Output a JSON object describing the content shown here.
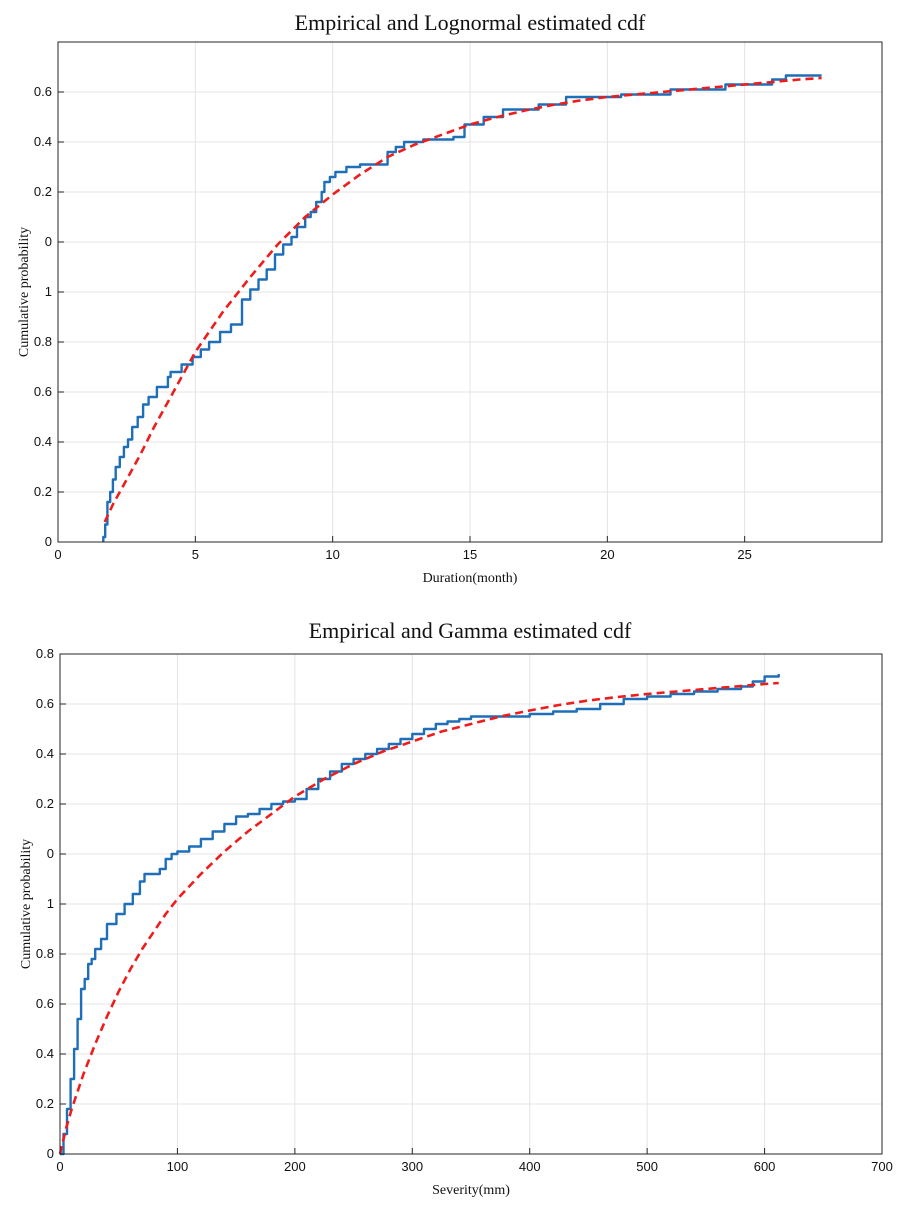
{
  "chart_data": [
    {
      "type": "line",
      "title": "Empirical and Lognormal estimated cdf",
      "xlabel": "Duration(month)",
      "ylabel": "Cumulative probability",
      "xlim": [
        0,
        30
      ],
      "x_ticks": [
        0,
        5,
        10,
        15,
        20,
        25
      ],
      "y_ticks": [
        0,
        1,
        2,
        3,
        4,
        5,
        6,
        7,
        8,
        9,
        10
      ],
      "y_tick_labels": [
        "0",
        "0.2",
        "0.4",
        "0.6",
        "0.8",
        "1",
        "0",
        "0.2",
        "0.4",
        "0.6",
        ""
      ],
      "grid": true,
      "series": [
        {
          "type": "step",
          "color": "#1f6fb8",
          "x": [
            1.65,
            1.72,
            1.8,
            1.9,
            2.0,
            2.1,
            2.25,
            2.4,
            2.55,
            2.7,
            2.9,
            3.1,
            3.3,
            3.6,
            4.0,
            4.1,
            4.5,
            4.9,
            5.2,
            5.5,
            5.9,
            6.3,
            6.7,
            7.0,
            7.3,
            7.6,
            7.9,
            8.2,
            8.5,
            8.7,
            9.0,
            9.2,
            9.4,
            9.6,
            9.7,
            9.9,
            10.1,
            10.5,
            11.0,
            12.0,
            12.3,
            12.6,
            13.3,
            14.4,
            14.8,
            15.5,
            16.2,
            17.5,
            18.5,
            20.5,
            22.3,
            24.3,
            26.0,
            26.5,
            27.8
          ],
          "y": [
            0.1,
            0.35,
            0.8,
            1.0,
            1.25,
            1.5,
            1.7,
            1.9,
            2.05,
            2.3,
            2.5,
            2.75,
            2.9,
            3.1,
            3.3,
            3.4,
            3.55,
            3.7,
            3.85,
            4.0,
            4.2,
            4.35,
            4.85,
            5.05,
            5.25,
            5.45,
            5.75,
            5.95,
            6.1,
            6.3,
            6.5,
            6.6,
            6.8,
            7.0,
            7.2,
            7.3,
            7.4,
            7.5,
            7.55,
            7.8,
            7.9,
            8.0,
            8.05,
            8.1,
            8.35,
            8.5,
            8.65,
            8.75,
            8.9,
            8.95,
            9.05,
            9.15,
            9.25,
            9.33,
            9.33
          ]
        },
        {
          "type": "fit",
          "color": "#ef1c1c",
          "x": [
            1.7,
            2.0,
            2.5,
            3.0,
            3.5,
            4.0,
            5.0,
            6.0,
            7.0,
            8.0,
            9.0,
            10.0,
            11.0,
            12.0,
            13.0,
            14.0,
            15.0,
            16.0,
            17.0,
            18.0,
            19.0,
            20.0,
            21.0,
            22.0,
            23.0,
            24.0,
            25.0,
            26.0,
            27.0,
            27.8
          ],
          "y": [
            0.4,
            0.75,
            1.25,
            1.75,
            2.3,
            2.8,
            3.8,
            4.6,
            5.3,
            5.95,
            6.5,
            6.95,
            7.35,
            7.7,
            7.95,
            8.15,
            8.35,
            8.5,
            8.63,
            8.74,
            8.83,
            8.9,
            8.95,
            9.0,
            9.05,
            9.1,
            9.15,
            9.2,
            9.25,
            9.28
          ]
        }
      ]
    },
    {
      "type": "line",
      "title": "Empirical and Gamma estimated cdf",
      "xlabel": "Severity(mm)",
      "ylabel": "Cumulative probability",
      "xlim": [
        0,
        700
      ],
      "x_ticks": [
        0,
        100,
        200,
        300,
        400,
        500,
        600,
        700
      ],
      "y_ticks": [
        0,
        1,
        2,
        3,
        4,
        5,
        6,
        7,
        8,
        9,
        10
      ],
      "y_tick_labels": [
        "0",
        "0.2",
        "0.4",
        "0.6",
        "0.8",
        "1",
        "0",
        "0.2",
        "0.4",
        "0.6",
        "0.8"
      ],
      "grid": true,
      "series": [
        {
          "type": "step",
          "color": "#1f6fb8",
          "x": [
            0,
            3,
            6,
            9,
            12,
            15,
            18,
            21,
            24,
            27,
            30,
            35,
            40,
            48,
            55,
            62,
            68,
            72,
            78,
            85,
            90,
            95,
            100,
            110,
            120,
            130,
            140,
            150,
            160,
            170,
            180,
            190,
            200,
            210,
            220,
            230,
            240,
            250,
            260,
            270,
            280,
            290,
            300,
            310,
            320,
            330,
            340,
            350,
            360,
            380,
            400,
            420,
            440,
            460,
            480,
            500,
            520,
            540,
            560,
            580,
            590,
            600,
            612
          ],
          "y": [
            0,
            0.4,
            0.9,
            1.5,
            2.1,
            2.7,
            3.3,
            3.5,
            3.8,
            3.9,
            4.1,
            4.3,
            4.6,
            4.8,
            5.0,
            5.2,
            5.45,
            5.6,
            5.6,
            5.7,
            5.9,
            6.0,
            6.05,
            6.15,
            6.3,
            6.45,
            6.6,
            6.75,
            6.8,
            6.9,
            7.0,
            7.05,
            7.1,
            7.3,
            7.5,
            7.65,
            7.8,
            7.9,
            8.0,
            8.1,
            8.2,
            8.3,
            8.4,
            8.5,
            8.6,
            8.65,
            8.7,
            8.75,
            8.75,
            8.75,
            8.8,
            8.85,
            8.9,
            9.0,
            9.1,
            9.15,
            9.2,
            9.25,
            9.3,
            9.35,
            9.45,
            9.55,
            9.6
          ]
        },
        {
          "type": "fit",
          "color": "#ef1c1c",
          "x": [
            0,
            5,
            10,
            20,
            30,
            40,
            50,
            60,
            70,
            80,
            90,
            100,
            120,
            140,
            160,
            180,
            200,
            225,
            250,
            275,
            300,
            325,
            350,
            375,
            400,
            425,
            450,
            475,
            500,
            525,
            550,
            575,
            600,
            612
          ],
          "y": [
            0,
            0.5,
            0.9,
            1.6,
            2.2,
            2.75,
            3.25,
            3.7,
            4.1,
            4.45,
            4.8,
            5.1,
            5.6,
            6.05,
            6.45,
            6.8,
            7.15,
            7.5,
            7.8,
            8.05,
            8.25,
            8.45,
            8.6,
            8.75,
            8.87,
            8.98,
            9.07,
            9.14,
            9.2,
            9.25,
            9.3,
            9.35,
            9.4,
            9.42
          ]
        }
      ]
    }
  ]
}
